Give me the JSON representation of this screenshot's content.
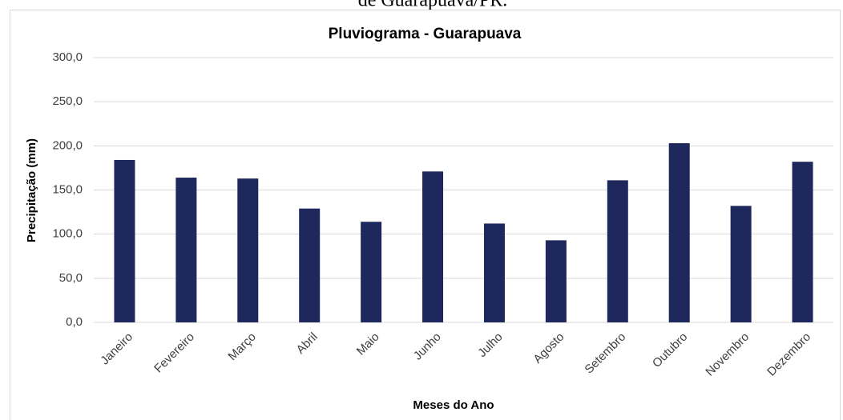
{
  "caption": "de Guarapuava/PR.",
  "chart_data": {
    "type": "bar",
    "title": "Pluviograma - Guarapuava",
    "x_label": "Meses do Ano",
    "y_label": "Precipitação (mm)",
    "categories": [
      "Janeiro",
      "Fevereiro",
      "Março",
      "Abril",
      "Maio",
      "Junho",
      "Julho",
      "Agosto",
      "Setembro",
      "Outubro",
      "Novembro",
      "Dezembro"
    ],
    "values": [
      184,
      164,
      163,
      129,
      114,
      171,
      112,
      93,
      161,
      203,
      132,
      182
    ],
    "color": "#1f285c",
    "ylim": [
      0,
      300
    ],
    "yticks": [
      {
        "value": 0,
        "label": "0,0"
      },
      {
        "value": 50,
        "label": "50,0"
      },
      {
        "value": 100,
        "label": "100,0"
      },
      {
        "value": 150,
        "label": "150,0"
      },
      {
        "value": 200,
        "label": "200,0"
      },
      {
        "value": 250,
        "label": "250,0"
      },
      {
        "value": 300,
        "label": "300,0"
      }
    ],
    "grid": true
  }
}
